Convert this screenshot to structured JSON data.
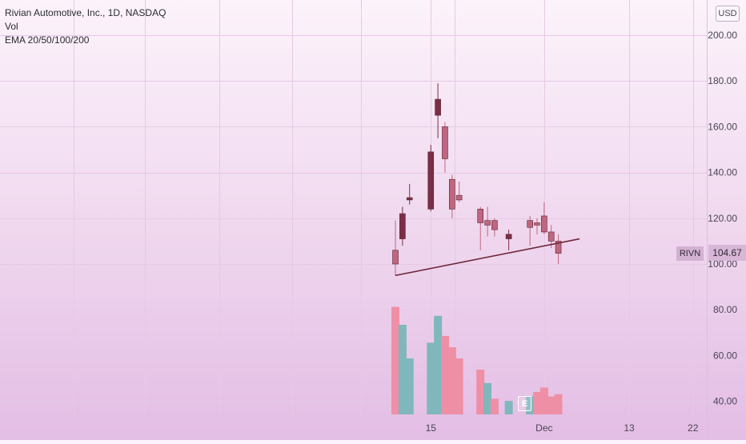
{
  "header": {
    "title": "Rivian Automotive, Inc., 1D, NASDAQ",
    "indicator_vol": "Vol",
    "indicator_ema": "EMA 20/50/100/200"
  },
  "price_scale": {
    "currency": "USD",
    "ticker": "RIVN",
    "last_price": "104.67"
  },
  "earnings_marker": "E",
  "colors": {
    "candle_up": "#7a2f45",
    "candle_down": "#c0667f",
    "volume_up": "#7fb7bc",
    "volume_down": "#ee8fa5",
    "trendline": "#6e2a3b",
    "grid": "#e6c9e3",
    "axis_text": "#4a4655"
  },
  "chart_data": {
    "type": "candlestick",
    "title": "Rivian Automotive, Inc., 1D, NASDAQ",
    "y_axis": {
      "ticks": [
        "200.00",
        "180.00",
        "160.00",
        "140.00",
        "120.00",
        "100.00",
        "80.00",
        "60.00",
        "40.00"
      ],
      "tick_values": [
        200,
        180,
        160,
        140,
        120,
        100,
        80,
        60,
        40
      ],
      "range": [
        30,
        210
      ]
    },
    "x_axis": {
      "ticks": [
        {
          "label": "15",
          "date": "2021-11-15"
        },
        {
          "label": "Dec",
          "date": "2021-12-01"
        },
        {
          "label": "13",
          "date": "2021-12-13"
        },
        {
          "label": "22",
          "date": "2021-12-22"
        }
      ]
    },
    "candles": [
      {
        "date": "2021-11-10",
        "open": 106,
        "high": 119,
        "low": 95,
        "close": 100
      },
      {
        "date": "2021-11-11",
        "open": 111,
        "high": 125,
        "low": 108,
        "close": 122
      },
      {
        "date": "2021-11-12",
        "open": 128,
        "high": 135,
        "low": 126,
        "close": 129
      },
      {
        "date": "2021-11-15",
        "open": 124,
        "high": 152,
        "low": 123,
        "close": 149
      },
      {
        "date": "2021-11-16",
        "open": 165,
        "high": 179,
        "low": 155,
        "close": 172
      },
      {
        "date": "2021-11-17",
        "open": 160,
        "high": 162,
        "low": 140,
        "close": 146
      },
      {
        "date": "2021-11-18",
        "open": 137,
        "high": 139,
        "low": 120,
        "close": 124
      },
      {
        "date": "2021-11-19",
        "open": 130,
        "high": 136,
        "low": 127,
        "close": 128
      },
      {
        "date": "2021-11-22",
        "open": 124,
        "high": 125,
        "low": 106,
        "close": 118
      },
      {
        "date": "2021-11-23",
        "open": 119,
        "high": 125,
        "low": 112,
        "close": 117
      },
      {
        "date": "2021-11-24",
        "open": 119,
        "high": 120,
        "low": 112,
        "close": 115
      },
      {
        "date": "2021-11-26",
        "open": 111,
        "high": 115,
        "low": 106,
        "close": 113
      },
      {
        "date": "2021-11-29",
        "open": 119,
        "high": 121,
        "low": 108,
        "close": 116
      },
      {
        "date": "2021-11-30",
        "open": 118,
        "high": 120,
        "low": 113,
        "close": 117
      },
      {
        "date": "2021-12-01",
        "open": 121,
        "high": 127,
        "low": 113,
        "close": 114
      },
      {
        "date": "2021-12-02",
        "open": 114,
        "high": 117,
        "low": 107,
        "close": 110
      },
      {
        "date": "2021-12-03",
        "open": 110,
        "high": 113,
        "low": 100,
        "close": 104.67
      }
    ],
    "volume": {
      "tick_values": [
        40,
        60,
        80
      ],
      "bars": [
        {
          "date": "2021-11-10",
          "value": 78,
          "direction": "down"
        },
        {
          "date": "2021-11-11",
          "value": 70,
          "direction": "up"
        },
        {
          "date": "2021-11-12",
          "value": 55,
          "direction": "up"
        },
        {
          "date": "2021-11-15",
          "value": 62,
          "direction": "up"
        },
        {
          "date": "2021-11-16",
          "value": 74,
          "direction": "up"
        },
        {
          "date": "2021-11-17",
          "value": 65,
          "direction": "down"
        },
        {
          "date": "2021-11-18",
          "value": 60,
          "direction": "down"
        },
        {
          "date": "2021-11-19",
          "value": 55,
          "direction": "down"
        },
        {
          "date": "2021-11-22",
          "value": 50,
          "direction": "down"
        },
        {
          "date": "2021-11-23",
          "value": 44,
          "direction": "up"
        },
        {
          "date": "2021-11-24",
          "value": 37,
          "direction": "down"
        },
        {
          "date": "2021-11-26",
          "value": 36,
          "direction": "up"
        },
        {
          "date": "2021-11-29",
          "value": 38,
          "direction": "up"
        },
        {
          "date": "2021-11-30",
          "value": 40,
          "direction": "down"
        },
        {
          "date": "2021-12-01",
          "value": 42,
          "direction": "down"
        },
        {
          "date": "2021-12-02",
          "value": 38,
          "direction": "down"
        },
        {
          "date": "2021-12-03",
          "value": 39,
          "direction": "down"
        }
      ]
    },
    "trendline": {
      "start": {
        "date": "2021-11-10",
        "price": 95
      },
      "end": {
        "date": "2021-12-06",
        "price": 111
      }
    },
    "grid": true
  }
}
